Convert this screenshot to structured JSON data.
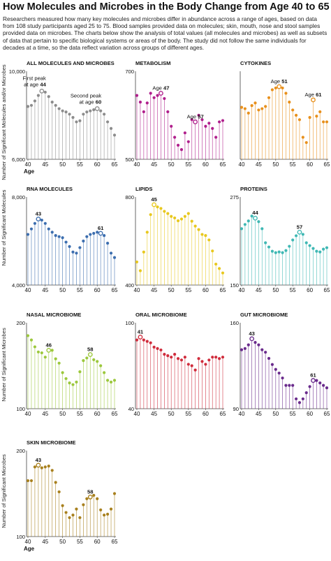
{
  "title": "How Molecules and Microbes in the Body Change from Age 40 to 65",
  "intro": "Researchers measured how many key molecules and microbes differ in abundance across a range of ages, based on data from 108 study participants aged 25 to 75. Blood samples provided data on molecules; skin, mouth, nose and stool samples provided data on microbes. The charts below show the analysis of total values (all molecules and microbes) as well as subsets of data that pertain to specific biological systems or areas of the body.  The study did not follow the same individuals for decades at a time, so the data reflect variation across groups of different ages.",
  "y_axis_labels": {
    "row1": "Number of Significant Molecules and/or Microbes",
    "row2": "Number of Significant Molecules",
    "row3": "Number of Significant Microbes",
    "row4": "Number of Significant Microbes"
  },
  "chart_data": [
    {
      "type": "lollipop",
      "title": "ALL MOLECULES AND MICROBES",
      "color": "#8c8c8c",
      "xlabel": "Age",
      "xticks": [
        40,
        45,
        50,
        55,
        60,
        65
      ],
      "ylim": [
        6000,
        10000
      ],
      "yticks": [
        "6,000",
        "10,000"
      ],
      "x": [
        40,
        41,
        42,
        43,
        44,
        45,
        46,
        47,
        48,
        49,
        50,
        51,
        52,
        53,
        54,
        55,
        56,
        57,
        58,
        59,
        60,
        61,
        62,
        63,
        64,
        65
      ],
      "values": [
        8400,
        8450,
        8650,
        8900,
        9100,
        9050,
        8850,
        8600,
        8450,
        8300,
        8200,
        8150,
        8050,
        7900,
        7700,
        7750,
        8050,
        8150,
        8200,
        8250,
        8300,
        8200,
        8050,
        7700,
        7400,
        7100
      ],
      "annotations": [
        {
          "x": 44,
          "lines": [
            "First peak",
            "at age 44"
          ],
          "emph": "44"
        },
        {
          "x": 60,
          "lines": [
            "Second peak",
            "at age 60"
          ],
          "emph": "60"
        }
      ]
    },
    {
      "type": "lollipop",
      "title": "METABOLISM",
      "color": "#b01f8c",
      "xlabel": "",
      "xticks": [
        40,
        45,
        50,
        55,
        60,
        65
      ],
      "ylim": [
        500,
        700
      ],
      "yticks": [
        "500",
        "700"
      ],
      "x": [
        40,
        41,
        42,
        43,
        44,
        45,
        46,
        47,
        48,
        49,
        50,
        51,
        52,
        53,
        54,
        55,
        56,
        57,
        58,
        59,
        60,
        61,
        62,
        63,
        64,
        65
      ],
      "values": [
        645,
        630,
        608,
        628,
        650,
        640,
        645,
        650,
        638,
        608,
        575,
        550,
        532,
        522,
        560,
        540,
        590,
        585,
        600,
        590,
        575,
        582,
        570,
        550,
        585,
        588
      ],
      "annotations": [
        {
          "x": 47,
          "lines": [
            "Age 47"
          ],
          "emph": "47"
        },
        {
          "x": 57,
          "lines": [
            "Age 57"
          ],
          "emph": "57"
        }
      ]
    },
    {
      "type": "lollipop",
      "title": "CYTOKINES",
      "color": "#e8901c",
      "xlabel": "",
      "xticks": [
        40,
        45,
        50,
        55,
        60,
        65
      ],
      "ylim": [
        200,
        400
      ],
      "yticks": [],
      "x": [
        40,
        41,
        42,
        43,
        44,
        45,
        46,
        47,
        48,
        49,
        50,
        51,
        52,
        53,
        54,
        55,
        56,
        57,
        58,
        59,
        60,
        61,
        62,
        63,
        64,
        65
      ],
      "values": [
        318,
        315,
        305,
        322,
        328,
        312,
        315,
        320,
        340,
        358,
        362,
        365,
        362,
        350,
        330,
        312,
        300,
        290,
        250,
        238,
        295,
        335,
        298,
        308,
        285,
        285
      ],
      "annotations": [
        {
          "x": 51,
          "lines": [
            "Age 51"
          ],
          "emph": "51"
        },
        {
          "x": 61,
          "lines": [
            "Age 61"
          ],
          "emph": "61"
        }
      ]
    },
    {
      "type": "lollipop",
      "title": "RNA MOLECULES",
      "color": "#3c6eaf",
      "xlabel": "",
      "xticks": [
        40,
        45,
        50,
        55,
        60,
        65
      ],
      "ylim": [
        4000,
        8000
      ],
      "yticks": [
        "4,000",
        "8,000"
      ],
      "x": [
        40,
        41,
        42,
        43,
        44,
        45,
        46,
        47,
        48,
        49,
        50,
        51,
        52,
        53,
        54,
        55,
        56,
        57,
        58,
        59,
        60,
        61,
        62,
        63,
        64,
        65
      ],
      "values": [
        6300,
        6550,
        6800,
        7000,
        6950,
        6800,
        6550,
        6400,
        6250,
        6200,
        6150,
        5950,
        5750,
        5500,
        5450,
        5700,
        6000,
        6200,
        6300,
        6350,
        6400,
        6350,
        6250,
        5900,
        5450,
        5250
      ],
      "annotations": [
        {
          "x": 43,
          "lines": [
            "43"
          ],
          "emph": "43"
        },
        {
          "x": 61,
          "lines": [
            "61"
          ],
          "emph": "61"
        }
      ]
    },
    {
      "type": "lollipop",
      "title": "LIPIDS",
      "color": "#e8c81e",
      "xlabel": "",
      "xticks": [
        40,
        45,
        50,
        55,
        60,
        65
      ],
      "ylim": [
        400,
        800
      ],
      "yticks": [
        "400",
        "800"
      ],
      "x": [
        40,
        41,
        42,
        43,
        44,
        45,
        46,
        47,
        48,
        49,
        50,
        51,
        52,
        53,
        54,
        55,
        56,
        57,
        58,
        59,
        60,
        61,
        62,
        63,
        64,
        65
      ],
      "values": [
        505,
        465,
        550,
        640,
        720,
        765,
        755,
        748,
        735,
        725,
        712,
        705,
        692,
        700,
        712,
        725,
        690,
        668,
        652,
        630,
        625,
        605,
        555,
        495,
        475,
        455
      ],
      "annotations": [
        {
          "x": 45,
          "lines": [
            "45"
          ],
          "emph": "45"
        }
      ]
    },
    {
      "type": "lollipop",
      "title": "PROTEINS",
      "color": "#3fb8b4",
      "xlabel": "",
      "xticks": [
        40,
        45,
        50,
        55,
        60,
        65
      ],
      "ylim": [
        150,
        275
      ],
      "yticks": [
        "150",
        "275"
      ],
      "x": [
        40,
        41,
        42,
        43,
        44,
        45,
        46,
        47,
        48,
        49,
        50,
        51,
        52,
        53,
        54,
        55,
        56,
        57,
        58,
        59,
        60,
        61,
        62,
        63,
        64,
        65
      ],
      "values": [
        230,
        236,
        241,
        248,
        245,
        240,
        230,
        210,
        204,
        198,
        196,
        197,
        196,
        199,
        205,
        214,
        220,
        225,
        222,
        210,
        206,
        202,
        198,
        197,
        201,
        203
      ],
      "annotations": [
        {
          "x": 44,
          "lines": [
            "44"
          ],
          "emph": "44"
        },
        {
          "x": 57,
          "lines": [
            "57"
          ],
          "emph": "57"
        }
      ]
    },
    {
      "type": "lollipop",
      "title": "NASAL MICROBIOME",
      "color": "#9cc83c",
      "xlabel": "",
      "xticks": [
        40,
        45,
        50,
        55,
        60,
        65
      ],
      "ylim": [
        100,
        200
      ],
      "yticks": [
        "100",
        "200"
      ],
      "x": [
        40,
        41,
        42,
        43,
        44,
        45,
        46,
        47,
        48,
        49,
        50,
        51,
        52,
        53,
        54,
        55,
        56,
        57,
        58,
        59,
        60,
        61,
        62,
        63,
        64,
        65
      ],
      "values": [
        185,
        180,
        172,
        166,
        165,
        160,
        168,
        168,
        158,
        153,
        142,
        135,
        130,
        128,
        131,
        143,
        156,
        159,
        163,
        157,
        155,
        150,
        142,
        133,
        131,
        133
      ],
      "annotations": [
        {
          "x": 46,
          "lines": [
            "46"
          ],
          "emph": "46"
        },
        {
          "x": 58,
          "lines": [
            "58"
          ],
          "emph": "58"
        }
      ]
    },
    {
      "type": "lollipop",
      "title": "ORAL MICROBIOME",
      "color": "#d02c3c",
      "xlabel": "",
      "xticks": [
        40,
        45,
        50,
        55,
        60,
        65
      ],
      "ylim": [
        40,
        100
      ],
      "yticks": [
        "40",
        "100"
      ],
      "x": [
        40,
        41,
        42,
        43,
        44,
        45,
        46,
        47,
        48,
        49,
        50,
        51,
        52,
        53,
        54,
        55,
        56,
        57,
        58,
        59,
        60,
        61,
        62,
        63,
        64,
        65
      ],
      "values": [
        88,
        90,
        88,
        87,
        86,
        83,
        82,
        81,
        78,
        77,
        76,
        78,
        75,
        74,
        76,
        71,
        70,
        67,
        75,
        73,
        71,
        74,
        76,
        76,
        75,
        76
      ],
      "annotations": [
        {
          "x": 41,
          "lines": [
            "41"
          ],
          "emph": "41"
        }
      ]
    },
    {
      "type": "lollipop",
      "title": "GUT MICROBIOME",
      "color": "#6a2b8c",
      "xlabel": "",
      "xticks": [
        40,
        45,
        50,
        55,
        60,
        65
      ],
      "ylim": [
        90,
        160
      ],
      "yticks": [
        "90",
        "160"
      ],
      "x": [
        40,
        41,
        42,
        43,
        44,
        45,
        46,
        47,
        48,
        49,
        50,
        51,
        52,
        53,
        54,
        55,
        56,
        57,
        58,
        59,
        60,
        61,
        62,
        63,
        64,
        65
      ],
      "values": [
        138,
        139,
        142,
        147,
        144,
        142,
        138,
        136,
        131,
        126,
        122,
        119,
        115,
        109,
        109,
        109,
        98,
        95,
        98,
        103,
        108,
        113,
        113,
        111,
        109,
        107
      ],
      "annotations": [
        {
          "x": 43,
          "lines": [
            "43"
          ],
          "emph": "43"
        },
        {
          "x": 61,
          "lines": [
            "61"
          ],
          "emph": "61"
        }
      ]
    },
    {
      "type": "lollipop",
      "title": "SKIN MICROBIOME",
      "color": "#a8801e",
      "xlabel": "Age",
      "xticks": [
        40,
        45,
        50,
        55,
        60,
        65
      ],
      "ylim": [
        100,
        200
      ],
      "yticks": [
        "100",
        "200"
      ],
      "x": [
        40,
        41,
        42,
        43,
        44,
        45,
        46,
        47,
        48,
        49,
        50,
        51,
        52,
        53,
        54,
        55,
        56,
        57,
        58,
        59,
        60,
        61,
        62,
        63,
        64,
        65
      ],
      "values": [
        165,
        165,
        181,
        183,
        180,
        181,
        182,
        177,
        163,
        152,
        136,
        128,
        122,
        125,
        132,
        122,
        137,
        144,
        146,
        148,
        144,
        131,
        125,
        126,
        132,
        150
      ],
      "annotations": [
        {
          "x": 43,
          "lines": [
            "43"
          ],
          "emph": "43"
        },
        {
          "x": 58,
          "lines": [
            "58"
          ],
          "emph": "58"
        }
      ]
    }
  ]
}
